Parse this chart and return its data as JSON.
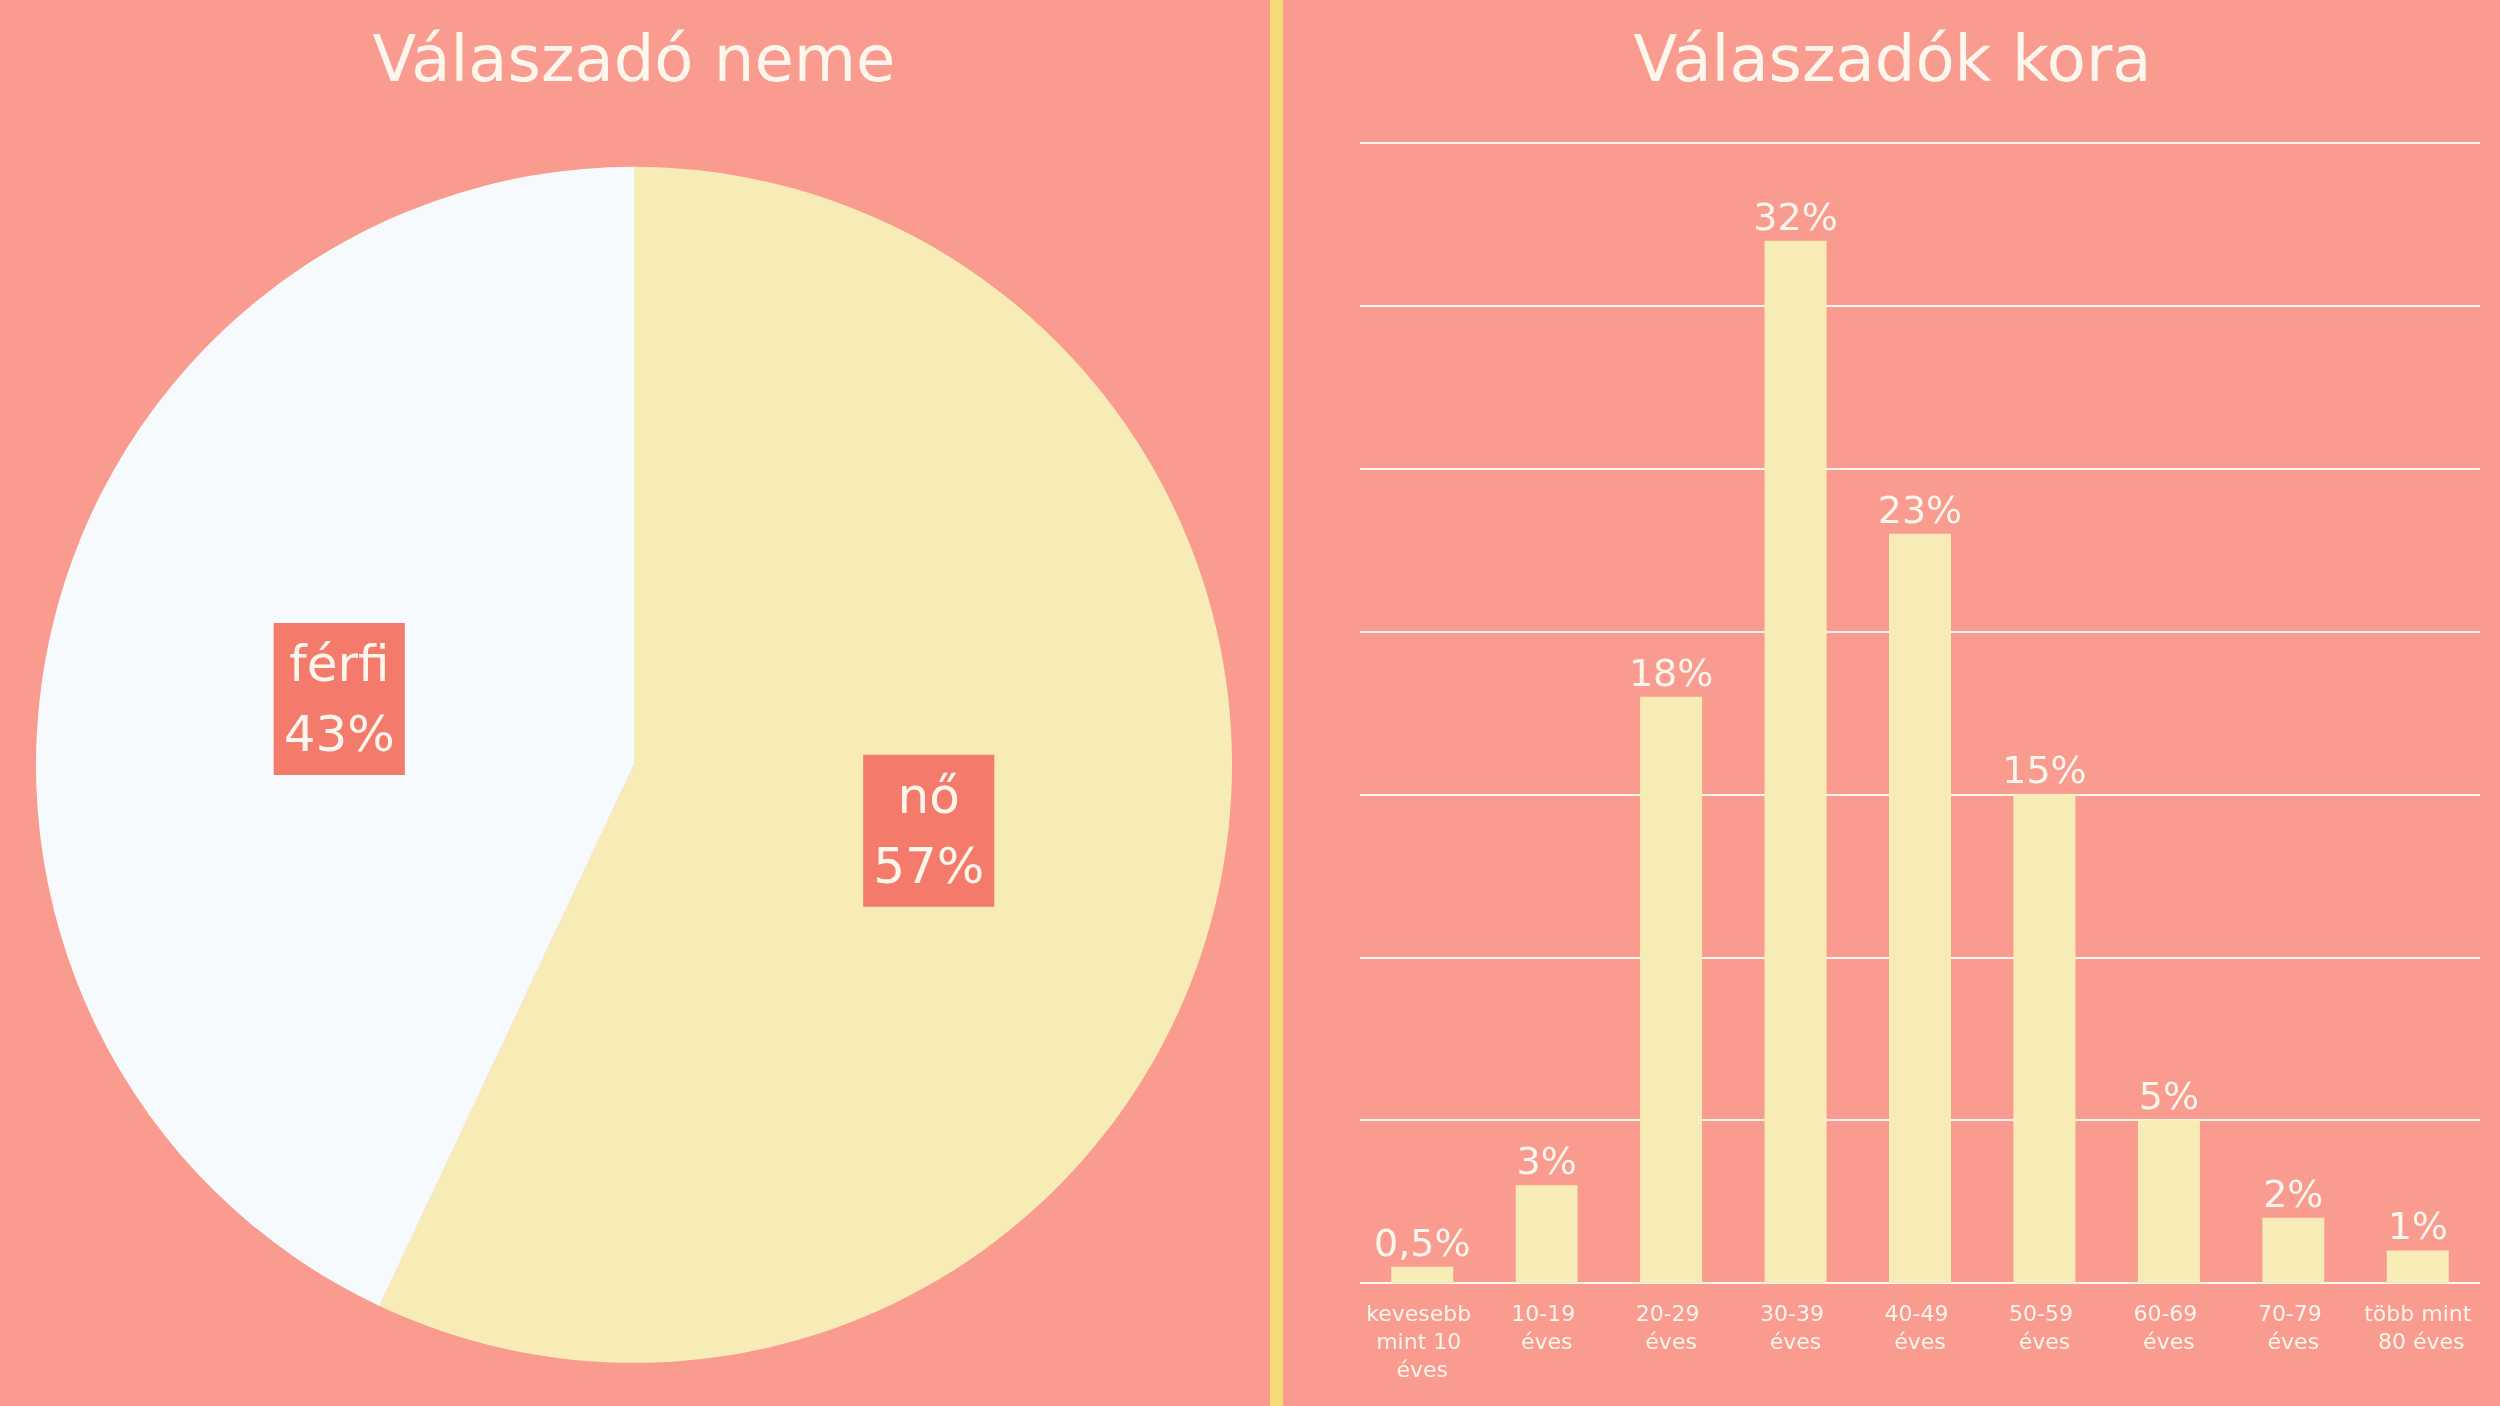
{
  "chart_data": [
    {
      "type": "pie",
      "title": "Válaszadó neme",
      "categories": [
        "nő",
        "férfi"
      ],
      "values": [
        57,
        43
      ],
      "colors": [
        "#f8ecb6",
        "#f7fafc"
      ],
      "value_labels": [
        "57%",
        "43%"
      ],
      "legend": false
    },
    {
      "type": "bar",
      "title": "Válaszadók kora",
      "categories": [
        "kevesebb mint 10 éves",
        "10-19 éves",
        "20-29 éves",
        "30-39 éves",
        "40-49 éves",
        "50-59 éves",
        "60-69 éves",
        "70-79 éves",
        "több mint 80 éves"
      ],
      "values": [
        0.5,
        3,
        18,
        32,
        23,
        15,
        5,
        2,
        1
      ],
      "color": "#f8ecb6",
      "value_labels": [
        "0,5%",
        "3%",
        "18%",
        "32%",
        "23%",
        "15%",
        "5%",
        "2%",
        "1%"
      ],
      "ylim": [
        0,
        35
      ],
      "yticks": [
        {
          "value": 0,
          "label": null
        },
        {
          "value": 5,
          "label": null
        },
        {
          "value": 10,
          "label": null
        },
        {
          "value": 15,
          "label": null
        },
        {
          "value": 20,
          "label": null
        },
        {
          "value": 25,
          "label": null
        },
        {
          "value": 30,
          "label": null
        },
        {
          "value": 35,
          "label": null
        }
      ],
      "grid": "y",
      "tick_labels": "x",
      "legend": false
    }
  ]
}
